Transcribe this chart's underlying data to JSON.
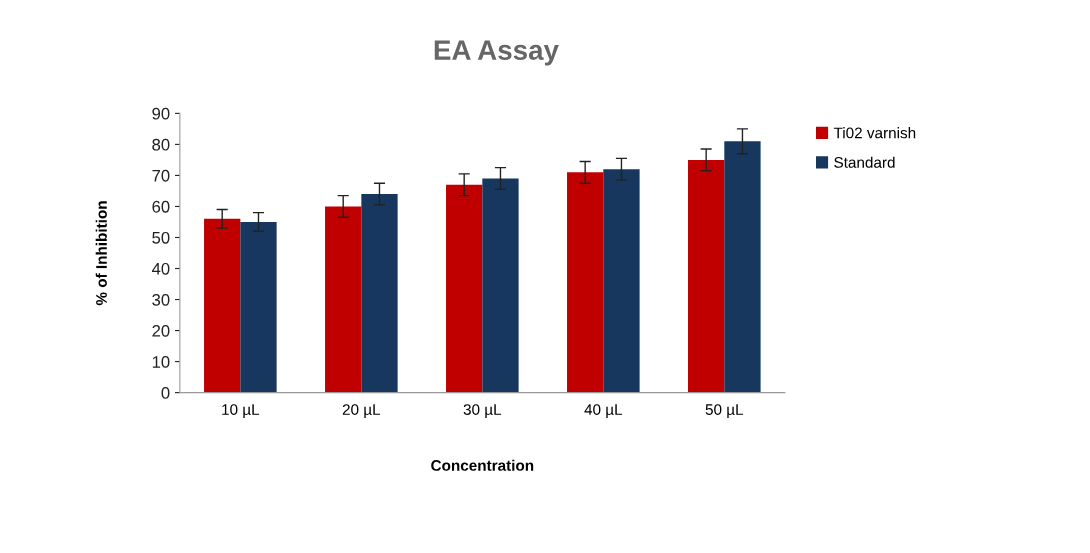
{
  "chart_data": {
    "type": "bar",
    "title": "EA Assay",
    "xlabel": "Concentration",
    "ylabel": "% of Inhibition",
    "categories": [
      "10 µL",
      "20 µL",
      "30 µL",
      "40 µL",
      "50 µL"
    ],
    "series": [
      {
        "name": "Ti02 varnish",
        "color": "#c00000",
        "values": [
          56,
          60,
          67,
          71,
          75
        ],
        "errors": [
          3,
          3.5,
          3.5,
          3.5,
          3.5
        ]
      },
      {
        "name": "Standard",
        "color": "#17375e",
        "values": [
          55,
          64,
          69,
          72,
          81
        ],
        "errors": [
          3,
          3.5,
          3.5,
          3.5,
          4
        ]
      }
    ],
    "ylim": [
      0,
      90
    ],
    "yticks": [
      0,
      10,
      20,
      30,
      40,
      50,
      60,
      70,
      80,
      90
    ],
    "grid": false,
    "legend": "right"
  }
}
